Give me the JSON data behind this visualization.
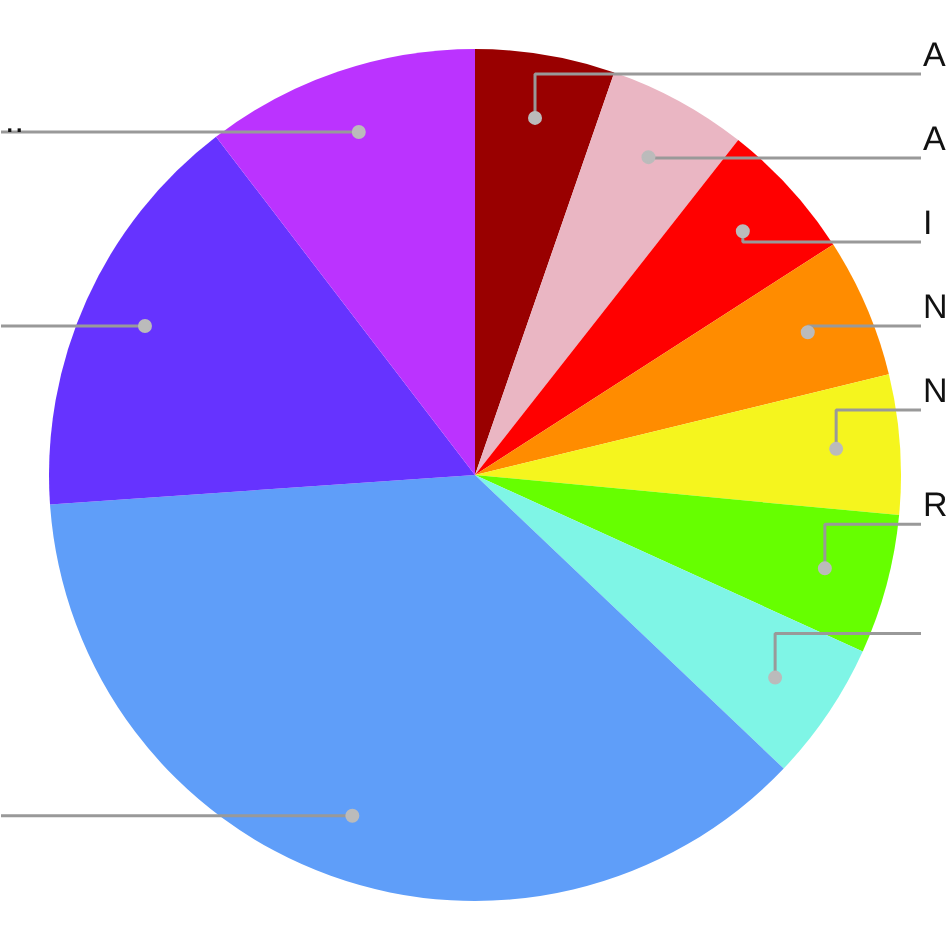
{
  "chart_data": {
    "type": "pie",
    "categories": [
      "A",
      "A",
      "I",
      "N",
      "N",
      "R",
      null,
      null,
      null,
      ".."
    ],
    "values": [
      5.3,
      5.3,
      5.3,
      5.3,
      5.3,
      5.3,
      5.3,
      36.8,
      15.7,
      10.4
    ],
    "colors": [
      "#990000",
      "#eab6c3",
      "#ff0000",
      "#ff8c00",
      "#f5f51e",
      "#66ff00",
      "#7ff5e6",
      "#5f9ef9",
      "#6633ff",
      "#bb33ff"
    ]
  }
}
